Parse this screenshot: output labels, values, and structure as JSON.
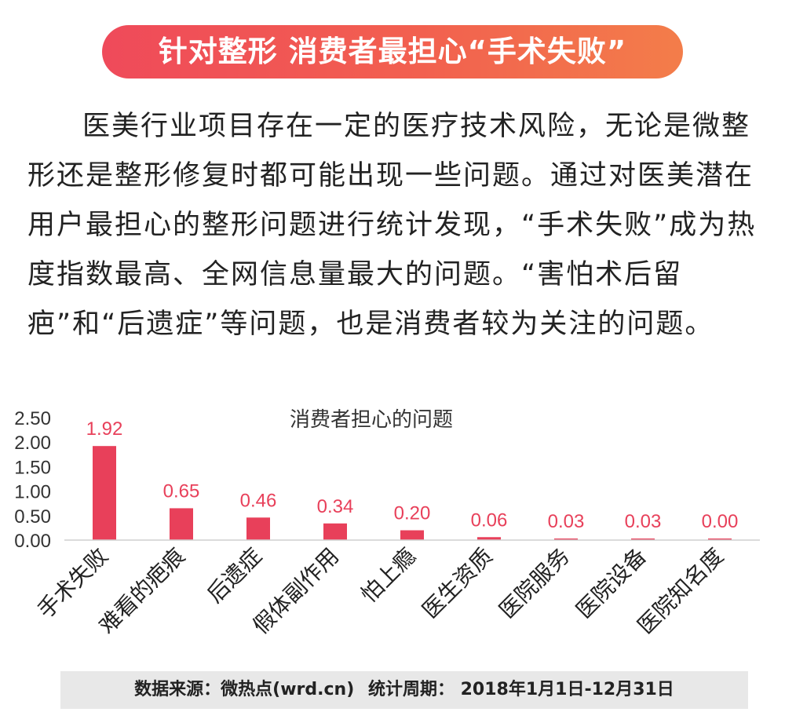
{
  "header": {
    "title": "针对整形 消费者最担心“手术失败”"
  },
  "intro": {
    "paragraph": "医美行业项目存在一定的医疗技术风险，无论是微整形还是整形修复时都可能出现一些问题。通过对医美潜在用户最担心的整形问题进行统计发现，“手术失败”成为热度指数最高、全网信息量最大的问题。“害怕术后留疤”和“后遗症”等问题，也是消费者较为关注的问题。"
  },
  "chart_data": {
    "type": "bar",
    "title": "消费者担心的问题",
    "categories": [
      "手术失败",
      "难看的疤痕",
      "后遗症",
      "假体副作用",
      "怕上瘾",
      "医生资质",
      "医院服务",
      "医院设备",
      "医院知名度"
    ],
    "values": [
      1.92,
      0.65,
      0.46,
      0.34,
      0.2,
      0.06,
      0.03,
      0.03,
      0.0
    ],
    "value_labels": [
      "1.92",
      "0.65",
      "0.46",
      "0.34",
      "0.20",
      "0.06",
      "0.03",
      "0.03",
      "0.00"
    ],
    "y_ticks": [
      "0.00",
      "0.50",
      "1.00",
      "1.50",
      "2.00",
      "2.50"
    ],
    "ylim": [
      0,
      2.5
    ],
    "bar_color": "#e8405a",
    "label_color": "#e8405a",
    "grid": false,
    "legend": "none"
  },
  "footer": {
    "source": "数据来源：微热点(wrd.cn)",
    "period": "统计周期： 2018年1月1日-12月31日"
  },
  "colors": {
    "banner_start": "#ef4a5a",
    "banner_end": "#f37d4a",
    "footer_bg": "#e8e8e8"
  }
}
